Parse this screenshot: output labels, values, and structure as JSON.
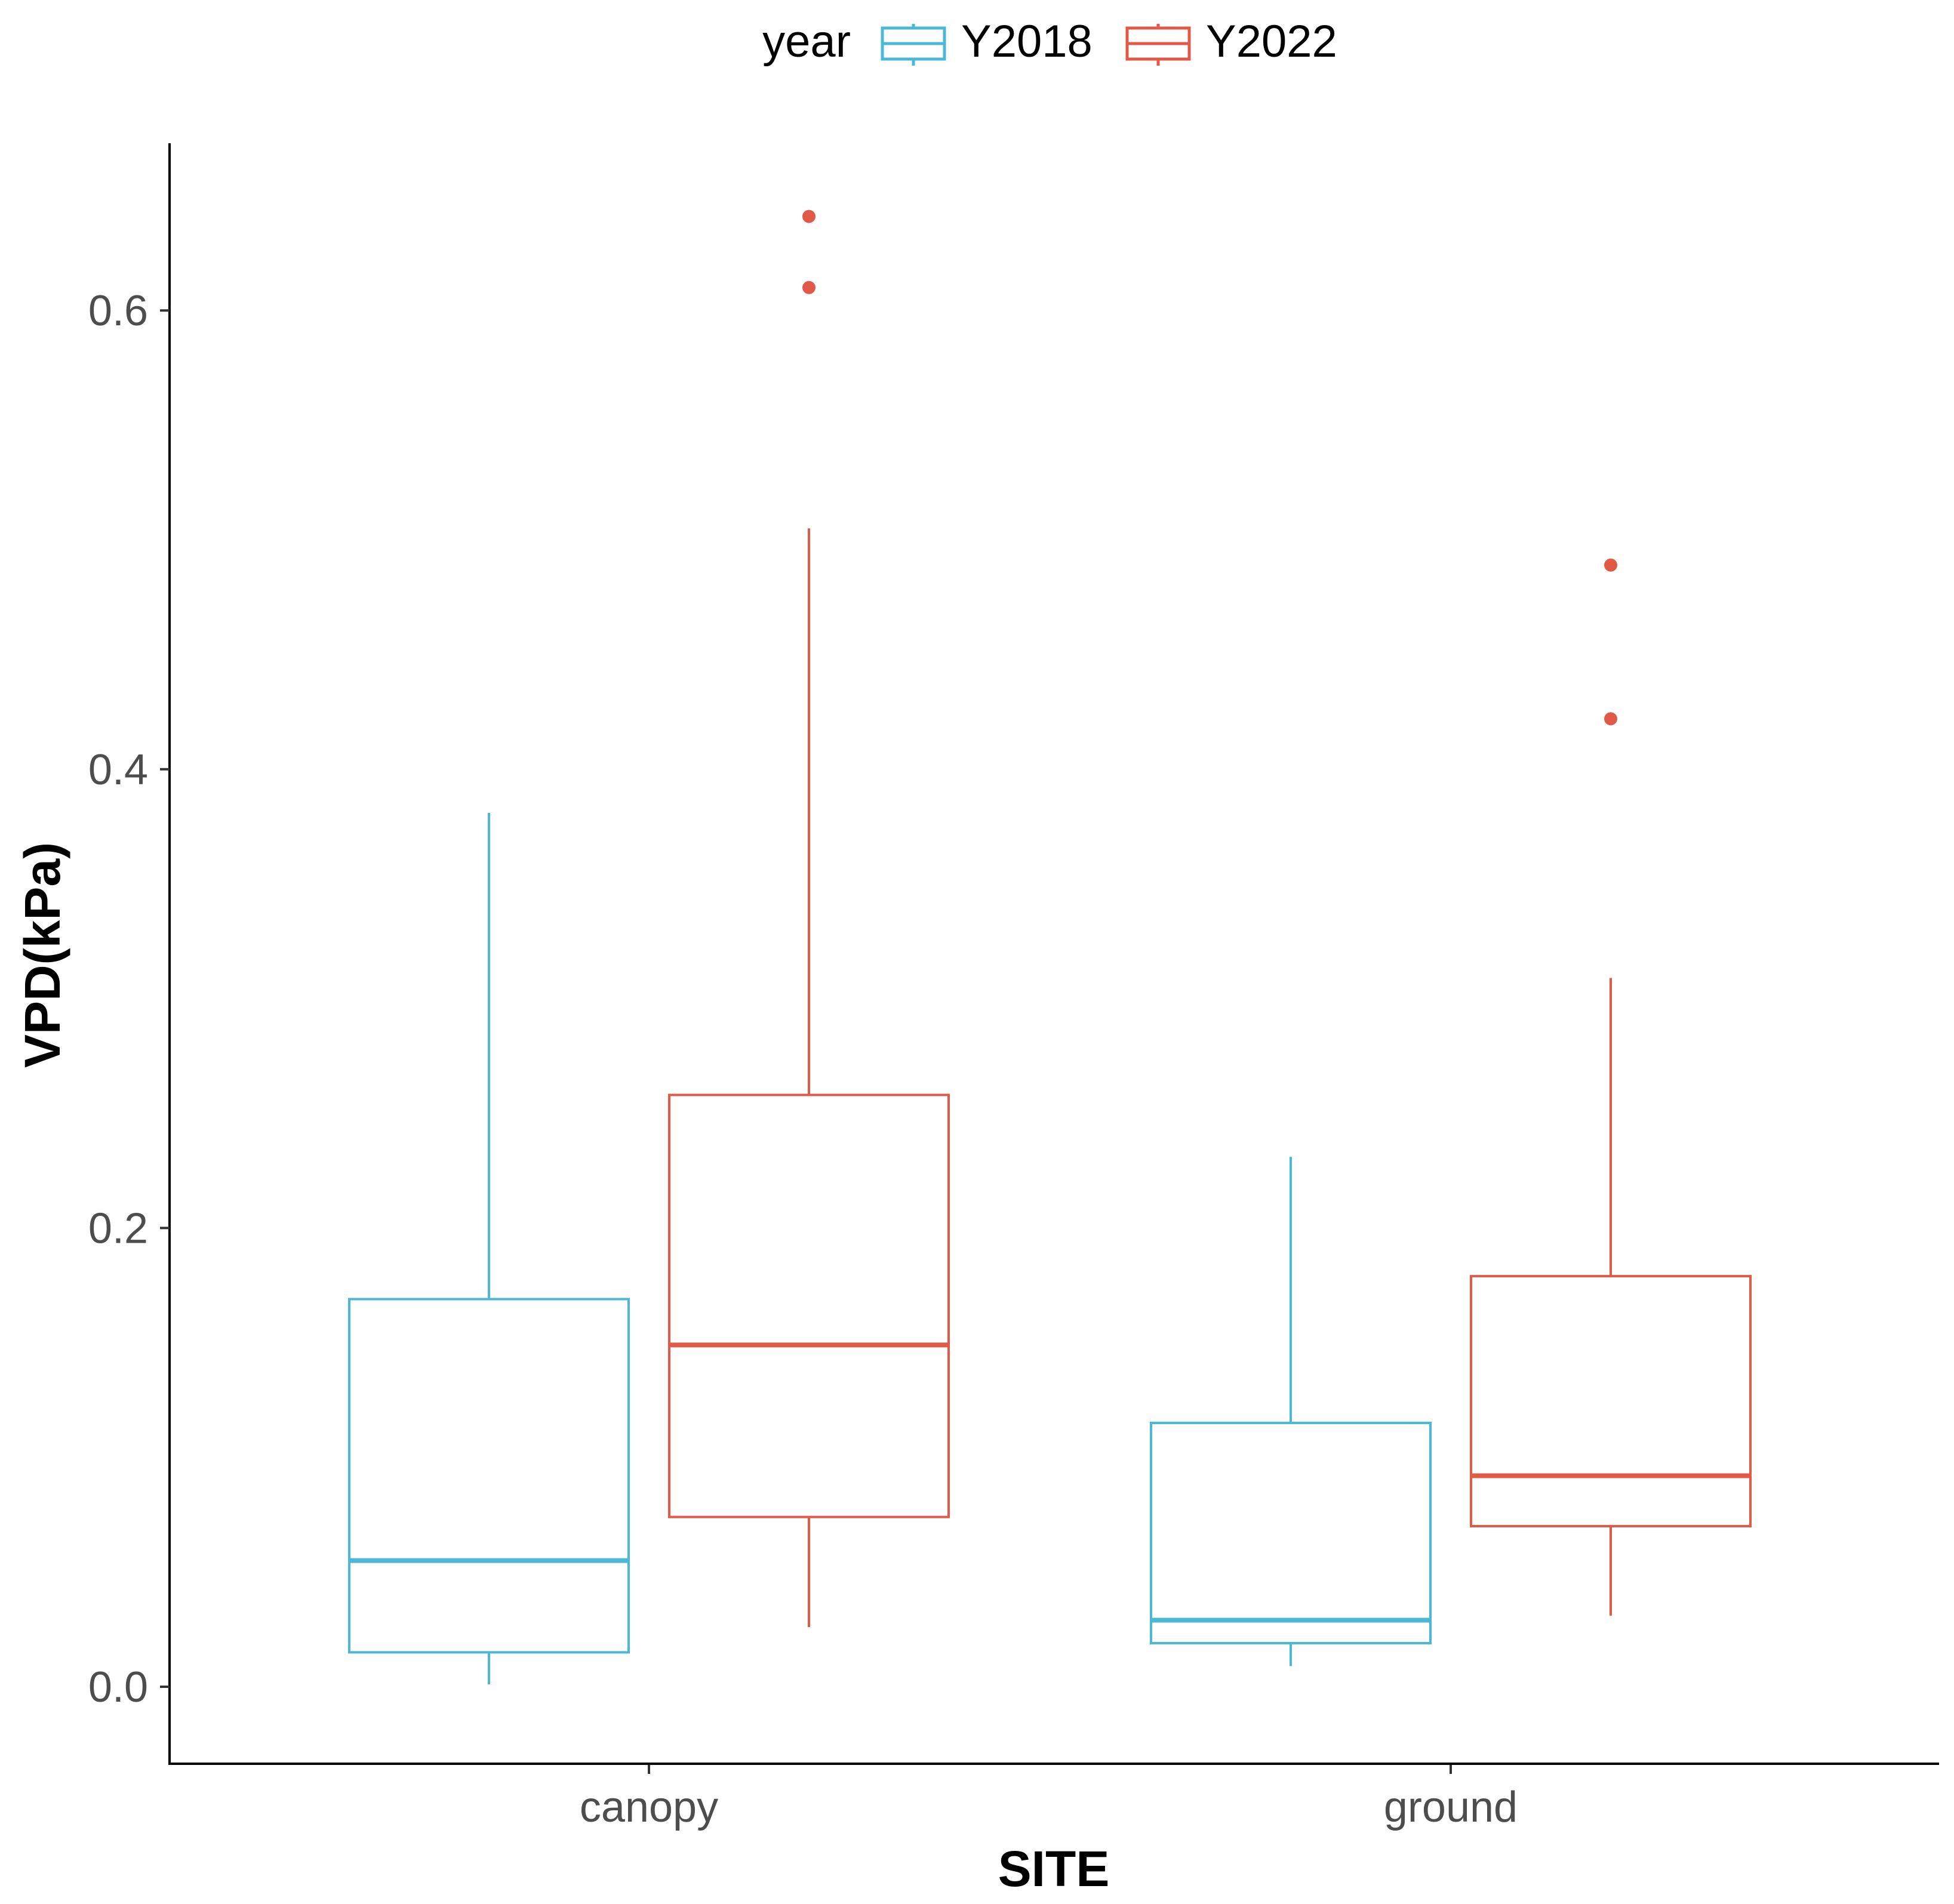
{
  "chart_data": {
    "type": "boxplot",
    "xlabel": "SITE",
    "ylabel": "VPD(kPa)",
    "ylim": [
      -0.03,
      0.67
    ],
    "yticks": [
      0.0,
      0.2,
      0.4,
      0.6
    ],
    "ytick_labels": [
      "0.0",
      "0.2",
      "0.4",
      "0.6"
    ],
    "categories": [
      "canopy",
      "ground"
    ],
    "legend": {
      "title": "year",
      "position": "top",
      "entries": [
        "Y2018",
        "Y2022"
      ]
    },
    "series": [
      {
        "name": "Y2018",
        "color": "#4bb8d6",
        "boxes": [
          {
            "category": "canopy",
            "whisker_low": 0.001,
            "q1": 0.015,
            "median": 0.055,
            "q3": 0.169,
            "whisker_high": 0.381,
            "outliers": []
          },
          {
            "category": "ground",
            "whisker_low": 0.009,
            "q1": 0.019,
            "median": 0.029,
            "q3": 0.115,
            "whisker_high": 0.231,
            "outliers": []
          }
        ]
      },
      {
        "name": "Y2022",
        "color": "#e05a47",
        "boxes": [
          {
            "category": "canopy",
            "whisker_low": 0.026,
            "q1": 0.074,
            "median": 0.149,
            "q3": 0.258,
            "whisker_high": 0.505,
            "outliers": [
              0.61,
              0.641
            ]
          },
          {
            "category": "ground",
            "whisker_low": 0.031,
            "q1": 0.07,
            "median": 0.092,
            "q3": 0.179,
            "whisker_high": 0.309,
            "outliers": [
              0.422,
              0.489
            ]
          }
        ]
      }
    ]
  }
}
